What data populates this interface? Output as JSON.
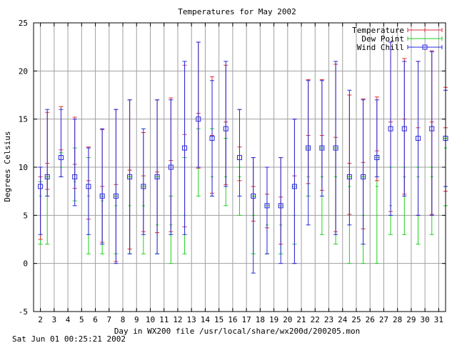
{
  "chart_data": {
    "type": "errorbar",
    "title": "Temperatures for May 2002",
    "xlabel": "Day in WX200 file /usr/local/share/wx200d/200205.mon",
    "ylabel": "Degrees Celsius",
    "footer": "Sat Jun 01 00:25:21 2002",
    "xlim": [
      1.5,
      31.5
    ],
    "ylim": [
      -5,
      25
    ],
    "x_ticks": [
      "2",
      "3",
      "4",
      "5",
      "6",
      "7",
      "8",
      "9",
      "10",
      "11",
      "12",
      "13",
      "14",
      "15",
      "16",
      "17",
      "18",
      "19",
      "20",
      "21",
      "22",
      "23",
      "24",
      "25",
      "26",
      "27",
      "28",
      "29",
      "30",
      "31"
    ],
    "y_ticks": [
      "-5",
      "0",
      "5",
      "10",
      "15",
      "20",
      "25"
    ],
    "grid": true,
    "legend_position": "top-right",
    "colors": {
      "temperature": "#d9303a",
      "dew_point": "#1fce1f",
      "wind_chill": "#2828dd",
      "grid": "#a0a0a0"
    },
    "series": [
      {
        "name": "Temperature",
        "marker": "plus",
        "points": [
          {
            "x": 2,
            "mean": 9.0,
            "low": 2.5,
            "high": 10.0
          },
          {
            "x": 2.5,
            "mean": 10.4,
            "low": 7.7,
            "high": 15.7
          },
          {
            "x": 3.5,
            "mean": 11.8,
            "low": 9.0,
            "high": 16.3
          },
          {
            "x": 4.5,
            "mean": 10.3,
            "low": 7.8,
            "high": 15.2
          },
          {
            "x": 5.5,
            "mean": 8.6,
            "low": 4.6,
            "high": 12.1
          },
          {
            "x": 6.5,
            "mean": 8.0,
            "low": 2.2,
            "high": 13.9
          },
          {
            "x": 7.5,
            "mean": 8.2,
            "low": 0.2,
            "high": 16.0
          },
          {
            "x": 8.5,
            "mean": 9.7,
            "low": 1.5,
            "high": 17.0
          },
          {
            "x": 9.5,
            "mean": 9.1,
            "low": 3.3,
            "high": 13.6
          },
          {
            "x": 10.5,
            "mean": 9.5,
            "low": 3.2,
            "high": 17.0
          },
          {
            "x": 11.5,
            "mean": 10.7,
            "low": 3.3,
            "high": 17.2
          },
          {
            "x": 12.5,
            "mean": 13.4,
            "low": 3.8,
            "high": 20.6
          },
          {
            "x": 13.5,
            "mean": 15.6,
            "low": 9.9,
            "high": 23.0
          },
          {
            "x": 14.5,
            "mean": 13.3,
            "low": 7.3,
            "high": 19.4
          },
          {
            "x": 15.5,
            "mean": 14.7,
            "low": 8.2,
            "high": 20.6
          },
          {
            "x": 16.5,
            "mean": 12.1,
            "low": 8.6,
            "high": 16.0
          },
          {
            "x": 17.5,
            "mean": 8.0,
            "low": 4.4,
            "high": 11.0
          },
          {
            "x": 18.5,
            "mean": 7.2,
            "low": 3.7,
            "high": 10.0
          },
          {
            "x": 19.5,
            "mean": 6.9,
            "low": 2.0,
            "high": 11.0
          },
          {
            "x": 20.5,
            "mean": 9.1,
            "low": 0.0,
            "high": 15.0
          },
          {
            "x": 21.5,
            "mean": 13.3,
            "low": 8.3,
            "high": 19.1
          },
          {
            "x": 22.5,
            "mean": 13.3,
            "low": 7.6,
            "high": 19.1
          },
          {
            "x": 23.5,
            "mean": 13.1,
            "low": 3.3,
            "high": 20.7
          },
          {
            "x": 24.5,
            "mean": 10.4,
            "low": 5.1,
            "high": 17.5
          },
          {
            "x": 25.5,
            "mean": 10.5,
            "low": 3.6,
            "high": 17.1
          },
          {
            "x": 26.5,
            "mean": 11.7,
            "low": 8.6,
            "high": 17.3
          },
          {
            "x": 27.5,
            "mean": 14.7,
            "low": 5.4,
            "high": 23.0
          },
          {
            "x": 28.5,
            "mean": 15.0,
            "low": 7.2,
            "high": 21.3
          },
          {
            "x": 29.5,
            "mean": 14.1,
            "low": 5.0,
            "high": 21.0
          },
          {
            "x": 30.5,
            "mean": 14.7,
            "low": 5.1,
            "high": 22.1
          },
          {
            "x": 31.5,
            "mean": 14.1,
            "low": 7.5,
            "high": 18.3
          }
        ]
      },
      {
        "name": "Dew Point",
        "marker": "tick",
        "points": [
          {
            "x": 2,
            "mean": 7.0,
            "low": 2.0,
            "high": 8.5
          },
          {
            "x": 2.5,
            "mean": 7.0,
            "low": 2.0,
            "high": 9.0
          },
          {
            "x": 3.5,
            "mean": 10.0,
            "low": 9.0,
            "high": 11.5
          },
          {
            "x": 4.5,
            "mean": 8.5,
            "low": 6.5,
            "high": 12.0
          },
          {
            "x": 5.5,
            "mean": 7.0,
            "low": 1.0,
            "high": 11.0
          },
          {
            "x": 6.5,
            "mean": 6.5,
            "low": 1.0,
            "high": 7.0
          },
          {
            "x": 7.5,
            "mean": 6.0,
            "low": 1.0,
            "high": 7.0
          },
          {
            "x": 8.5,
            "mean": 6.0,
            "low": 1.0,
            "high": 9.0
          },
          {
            "x": 9.5,
            "mean": 6.0,
            "low": 1.0,
            "high": 8.0
          },
          {
            "x": 10.5,
            "mean": 4.0,
            "low": 1.0,
            "high": 9.0
          },
          {
            "x": 11.5,
            "mean": 4.0,
            "low": 0.0,
            "high": 7.0
          },
          {
            "x": 12.5,
            "mean": 5.0,
            "low": 1.0,
            "high": 11.0
          },
          {
            "x": 13.5,
            "mean": 10.0,
            "low": 7.0,
            "high": 14.0
          },
          {
            "x": 14.5,
            "mean": 9.0,
            "low": 7.0,
            "high": 14.0
          },
          {
            "x": 15.5,
            "mean": 9.0,
            "low": 6.0,
            "high": 13.0
          },
          {
            "x": 16.5,
            "mean": 9.0,
            "low": 5.0,
            "high": 10.0
          },
          {
            "x": 17.5,
            "mean": 5.0,
            "low": 1.0,
            "high": 7.0
          },
          {
            "x": 18.5,
            "mean": 4.0,
            "low": 1.0,
            "high": 6.0
          },
          {
            "x": 19.5,
            "mean": 4.0,
            "low": 1.0,
            "high": 6.0
          },
          {
            "x": 20.5,
            "mean": 5.0,
            "low": 2.0,
            "high": 8.0
          },
          {
            "x": 21.5,
            "mean": 9.0,
            "low": 7.0,
            "high": 12.0
          },
          {
            "x": 22.5,
            "mean": 9.0,
            "low": 3.0,
            "high": 12.0
          },
          {
            "x": 23.5,
            "mean": 9.0,
            "low": 2.0,
            "high": 12.0
          },
          {
            "x": 24.5,
            "mean": 8.0,
            "low": 0.0,
            "high": 9.0
          },
          {
            "x": 25.5,
            "mean": 5.0,
            "low": 0.0,
            "high": 9.0
          },
          {
            "x": 26.5,
            "mean": 8.0,
            "low": 0.0,
            "high": 11.0
          },
          {
            "x": 27.5,
            "mean": 6.0,
            "low": 3.0,
            "high": 10.0
          },
          {
            "x": 28.5,
            "mean": 9.0,
            "low": 3.0,
            "high": 10.0
          },
          {
            "x": 29.5,
            "mean": 9.0,
            "low": 2.0,
            "high": 10.0
          },
          {
            "x": 30.5,
            "mean": 9.0,
            "low": 3.0,
            "high": 10.0
          },
          {
            "x": 31.5,
            "mean": 12.0,
            "low": 6.0,
            "high": 13.0
          }
        ]
      },
      {
        "name": "Wind Chill",
        "marker": "square",
        "points": [
          {
            "x": 2,
            "mean": 8.0,
            "low": 3.0,
            "high": 10.0
          },
          {
            "x": 2.5,
            "mean": 9.0,
            "low": 7.0,
            "high": 16.0
          },
          {
            "x": 3.5,
            "mean": 11.0,
            "low": 9.0,
            "high": 16.0
          },
          {
            "x": 4.5,
            "mean": 9.0,
            "low": 6.0,
            "high": 15.0
          },
          {
            "x": 5.5,
            "mean": 8.0,
            "low": 3.0,
            "high": 12.0
          },
          {
            "x": 6.5,
            "mean": 7.0,
            "low": 2.0,
            "high": 14.0
          },
          {
            "x": 7.5,
            "mean": 7.0,
            "low": 0.0,
            "high": 16.0
          },
          {
            "x": 8.5,
            "mean": 9.0,
            "low": 1.0,
            "high": 17.0
          },
          {
            "x": 9.5,
            "mean": 8.0,
            "low": 3.0,
            "high": 14.0
          },
          {
            "x": 10.5,
            "mean": 9.0,
            "low": 1.0,
            "high": 17.0
          },
          {
            "x": 11.5,
            "mean": 10.0,
            "low": 3.0,
            "high": 17.0
          },
          {
            "x": 12.5,
            "mean": 12.0,
            "low": 3.0,
            "high": 21.0
          },
          {
            "x": 13.5,
            "mean": 15.0,
            "low": 10.0,
            "high": 23.0
          },
          {
            "x": 14.5,
            "mean": 13.0,
            "low": 7.0,
            "high": 19.0
          },
          {
            "x": 15.5,
            "mean": 14.0,
            "low": 8.0,
            "high": 21.0
          },
          {
            "x": 16.5,
            "mean": 11.0,
            "low": 7.0,
            "high": 16.0
          },
          {
            "x": 17.5,
            "mean": 7.0,
            "low": -1.0,
            "high": 11.0
          },
          {
            "x": 18.5,
            "mean": 6.0,
            "low": 1.0,
            "high": 10.0
          },
          {
            "x": 19.5,
            "mean": 6.0,
            "low": 0.0,
            "high": 11.0
          },
          {
            "x": 20.5,
            "mean": 8.0,
            "low": 0.0,
            "high": 15.0
          },
          {
            "x": 21.5,
            "mean": 12.0,
            "low": 4.0,
            "high": 19.0
          },
          {
            "x": 22.5,
            "mean": 12.0,
            "low": 7.0,
            "high": 19.0
          },
          {
            "x": 23.5,
            "mean": 12.0,
            "low": 3.0,
            "high": 21.0
          },
          {
            "x": 24.5,
            "mean": 9.0,
            "low": 4.0,
            "high": 18.0
          },
          {
            "x": 25.5,
            "mean": 9.0,
            "low": 2.0,
            "high": 17.0
          },
          {
            "x": 26.5,
            "mean": 11.0,
            "low": 9.0,
            "high": 17.0
          },
          {
            "x": 27.5,
            "mean": 14.0,
            "low": 5.0,
            "high": 23.0
          },
          {
            "x": 28.5,
            "mean": 14.0,
            "low": 7.0,
            "high": 21.0
          },
          {
            "x": 29.5,
            "mean": 13.0,
            "low": 5.0,
            "high": 21.0
          },
          {
            "x": 30.5,
            "mean": 14.0,
            "low": 5.0,
            "high": 22.0
          },
          {
            "x": 31.5,
            "mean": 13.0,
            "low": 8.0,
            "high": 18.0
          }
        ]
      }
    ]
  }
}
